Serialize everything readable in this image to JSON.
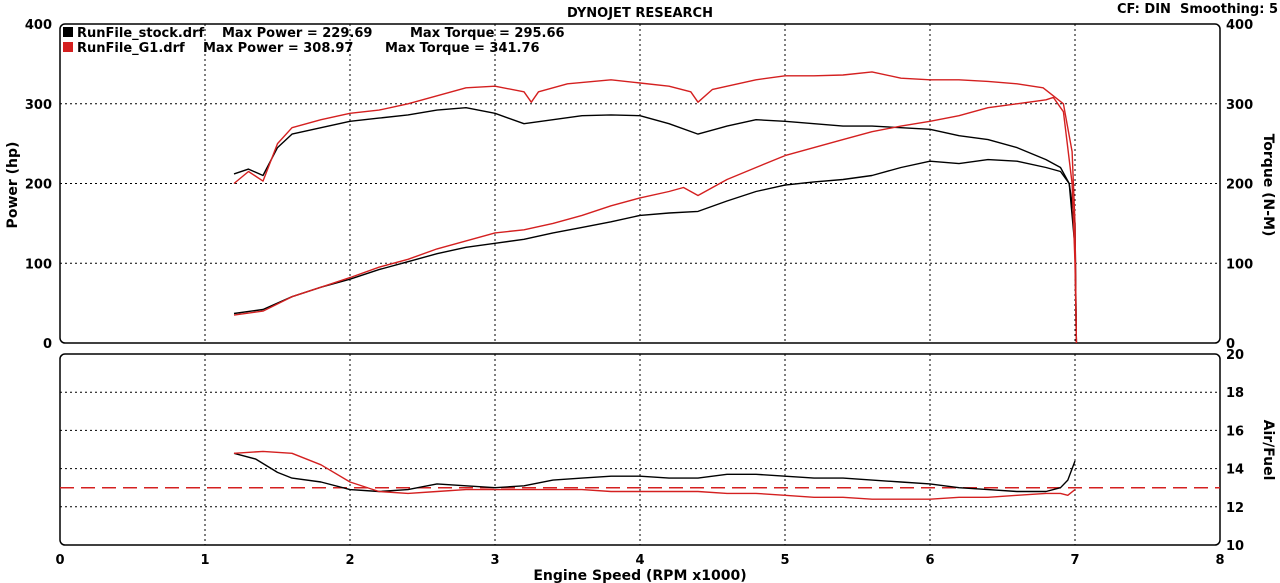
{
  "header": {
    "title": "DYNOJET RESEARCH",
    "settings": "CF: DIN  Smoothing: 5"
  },
  "legend": [
    {
      "file": "RunFile_stock.drf",
      "power_label": "Max Power = 229.69",
      "torque_label": "Max Torque = 295.66",
      "color": "#000000"
    },
    {
      "file": "RunFile_G1.drf",
      "power_label": "Max Power = 308.97",
      "torque_label": "Max Torque = 341.76",
      "color": "#d42020"
    }
  ],
  "chart_data": [
    {
      "type": "line",
      "xlabel": "Engine Speed (RPM x1000)",
      "ylabel": "Power (hp)",
      "y2label": "Torque (N-M)",
      "xlim": [
        0,
        8
      ],
      "ylim": [
        0,
        400
      ],
      "y2lim": [
        0,
        400
      ],
      "x_ticks": [
        "0",
        "1",
        "2",
        "3",
        "4",
        "5",
        "6",
        "7",
        "8"
      ],
      "y_ticks": [
        "0",
        "100",
        "200",
        "300",
        "400"
      ],
      "y2_ticks": [
        "0",
        "100",
        "200",
        "300",
        "400"
      ],
      "grid": true,
      "series": [
        {
          "name": "RunFile_stock.drf",
          "quantity": "power",
          "color": "#000000",
          "x": [
            1.2,
            1.4,
            1.6,
            1.8,
            2.0,
            2.2,
            2.4,
            2.6,
            2.8,
            3.0,
            3.2,
            3.4,
            3.6,
            3.8,
            4.0,
            4.2,
            4.4,
            4.6,
            4.8,
            5.0,
            5.2,
            5.4,
            5.6,
            5.8,
            6.0,
            6.2,
            6.4,
            6.6,
            6.8,
            6.9,
            6.96,
            7.0,
            7.01
          ],
          "y": [
            37,
            42,
            58,
            70,
            80,
            92,
            102,
            112,
            120,
            125,
            130,
            138,
            145,
            152,
            160,
            163,
            165,
            178,
            190,
            198,
            202,
            205,
            210,
            220,
            228,
            225,
            230,
            228,
            220,
            215,
            200,
            120,
            0
          ]
        },
        {
          "name": "RunFile_stock.drf",
          "quantity": "torque",
          "color": "#000000",
          "x": [
            1.2,
            1.3,
            1.4,
            1.5,
            1.6,
            1.8,
            2.0,
            2.2,
            2.4,
            2.6,
            2.8,
            3.0,
            3.2,
            3.4,
            3.6,
            3.8,
            4.0,
            4.2,
            4.4,
            4.6,
            4.8,
            5.0,
            5.2,
            5.4,
            5.6,
            5.8,
            6.0,
            6.2,
            6.4,
            6.6,
            6.8,
            6.9,
            6.96,
            7.0,
            7.01
          ],
          "y": [
            212,
            218,
            210,
            245,
            262,
            270,
            278,
            282,
            286,
            292,
            295,
            288,
            275,
            280,
            285,
            286,
            285,
            275,
            262,
            272,
            280,
            278,
            275,
            272,
            272,
            270,
            268,
            260,
            255,
            245,
            230,
            220,
            200,
            150,
            0
          ]
        },
        {
          "name": "RunFile_G1.drf",
          "quantity": "power",
          "color": "#d42020",
          "x": [
            1.2,
            1.4,
            1.6,
            1.8,
            2.0,
            2.2,
            2.4,
            2.6,
            2.8,
            3.0,
            3.2,
            3.4,
            3.6,
            3.8,
            4.0,
            4.2,
            4.3,
            4.4,
            4.6,
            4.8,
            5.0,
            5.2,
            5.4,
            5.6,
            5.8,
            6.0,
            6.2,
            6.4,
            6.6,
            6.8,
            6.85,
            6.92,
            6.98,
            7.0,
            7.01
          ],
          "y": [
            35,
            40,
            58,
            70,
            82,
            95,
            105,
            118,
            128,
            138,
            142,
            150,
            160,
            172,
            182,
            190,
            195,
            185,
            205,
            220,
            235,
            245,
            255,
            265,
            272,
            278,
            285,
            295,
            300,
            305,
            308,
            290,
            200,
            100,
            0
          ]
        },
        {
          "name": "RunFile_G1.drf",
          "quantity": "torque",
          "color": "#d42020",
          "x": [
            1.2,
            1.3,
            1.4,
            1.5,
            1.6,
            1.8,
            2.0,
            2.2,
            2.4,
            2.6,
            2.8,
            3.0,
            3.2,
            3.25,
            3.3,
            3.5,
            3.8,
            4.0,
            4.2,
            4.35,
            4.4,
            4.5,
            4.8,
            5.0,
            5.2,
            5.4,
            5.6,
            5.8,
            6.0,
            6.2,
            6.4,
            6.6,
            6.78,
            6.85,
            6.92,
            6.98,
            7.0,
            7.01
          ],
          "y": [
            200,
            215,
            203,
            250,
            270,
            280,
            288,
            292,
            300,
            310,
            320,
            322,
            315,
            302,
            315,
            325,
            330,
            326,
            322,
            315,
            302,
            318,
            330,
            335,
            335,
            336,
            340,
            332,
            330,
            330,
            328,
            325,
            320,
            310,
            300,
            240,
            150,
            0
          ]
        }
      ]
    },
    {
      "type": "line",
      "ylabel": "Air/Fuel",
      "xlim": [
        0,
        8
      ],
      "ylim": [
        10,
        20
      ],
      "y_ticks": [
        "10",
        "12",
        "14",
        "16",
        "18",
        "20"
      ],
      "grid": true,
      "reference_line": {
        "y": 13.0,
        "style": "dashed",
        "color": "#d42020"
      },
      "series": [
        {
          "name": "RunFile_stock.drf",
          "color": "#000000",
          "x": [
            1.2,
            1.35,
            1.5,
            1.6,
            1.8,
            2.0,
            2.2,
            2.4,
            2.6,
            2.8,
            3.0,
            3.2,
            3.4,
            3.6,
            3.8,
            4.0,
            4.2,
            4.4,
            4.6,
            4.8,
            5.0,
            5.2,
            5.4,
            5.6,
            5.8,
            6.0,
            6.2,
            6.4,
            6.6,
            6.8,
            6.9,
            6.95,
            7.0
          ],
          "y": [
            14.8,
            14.5,
            13.8,
            13.5,
            13.3,
            12.9,
            12.8,
            12.9,
            13.2,
            13.1,
            13.0,
            13.1,
            13.4,
            13.5,
            13.6,
            13.6,
            13.5,
            13.5,
            13.7,
            13.7,
            13.6,
            13.5,
            13.5,
            13.4,
            13.3,
            13.2,
            13.0,
            12.9,
            12.8,
            12.8,
            13.0,
            13.4,
            14.4
          ]
        },
        {
          "name": "RunFile_G1.drf",
          "color": "#d42020",
          "x": [
            1.2,
            1.4,
            1.6,
            1.8,
            2.0,
            2.2,
            2.4,
            2.6,
            2.8,
            3.0,
            3.2,
            3.4,
            3.6,
            3.8,
            4.0,
            4.2,
            4.4,
            4.6,
            4.8,
            5.0,
            5.2,
            5.4,
            5.6,
            5.8,
            6.0,
            6.2,
            6.4,
            6.6,
            6.8,
            6.9,
            6.95,
            7.0
          ],
          "y": [
            14.8,
            14.9,
            14.8,
            14.2,
            13.3,
            12.8,
            12.7,
            12.8,
            12.9,
            12.9,
            12.9,
            12.9,
            12.9,
            12.8,
            12.8,
            12.8,
            12.8,
            12.7,
            12.7,
            12.6,
            12.5,
            12.5,
            12.4,
            12.4,
            12.4,
            12.5,
            12.5,
            12.6,
            12.7,
            12.7,
            12.6,
            12.9
          ]
        }
      ]
    }
  ]
}
